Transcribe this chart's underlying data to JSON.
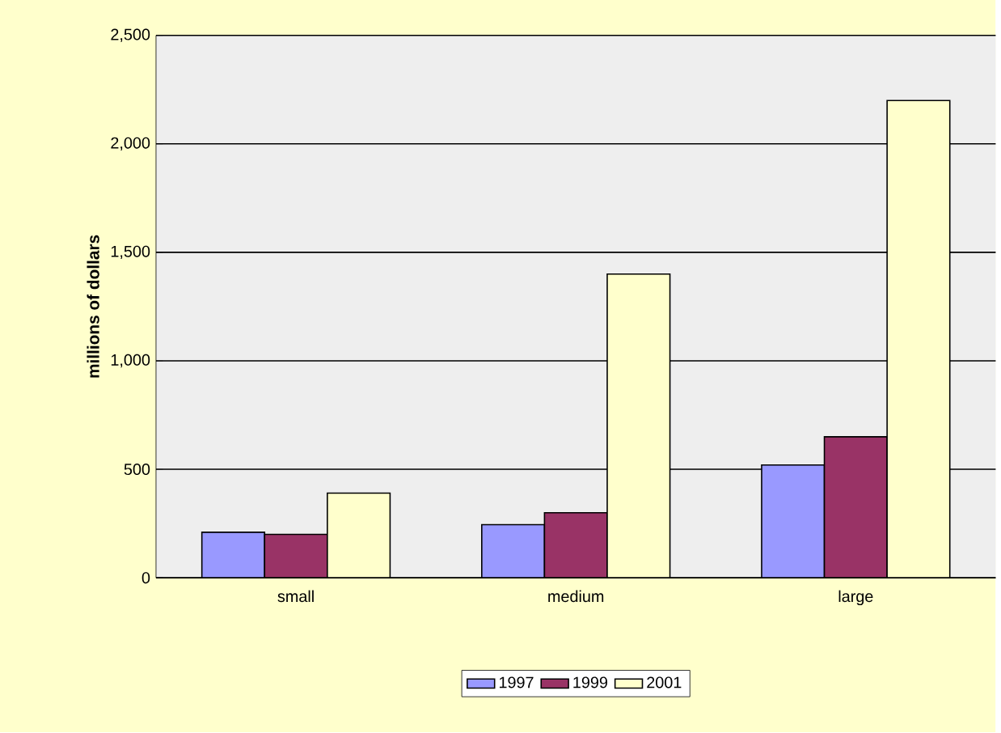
{
  "chart_data": {
    "type": "bar",
    "ylabel": "millions of dollars",
    "categories": [
      "small",
      "medium",
      "large"
    ],
    "series": [
      {
        "name": "1997",
        "color": "#9999ff",
        "values": [
          210,
          245,
          520
        ]
      },
      {
        "name": "1999",
        "color": "#993366",
        "values": [
          200,
          300,
          650
        ]
      },
      {
        "name": "2001",
        "color": "#ffffcc",
        "values": [
          390,
          1400,
          2200
        ]
      }
    ],
    "ylim": [
      0,
      2500
    ],
    "yticks": [
      0,
      500,
      {
        "value": 1000,
        "label": "1,000"
      },
      {
        "value": 1500,
        "label": "1,500"
      },
      {
        "value": 2000,
        "label": "2,000"
      },
      {
        "value": 2500,
        "label": "2,500"
      }
    ],
    "grid": "y",
    "legend": "bottom"
  }
}
